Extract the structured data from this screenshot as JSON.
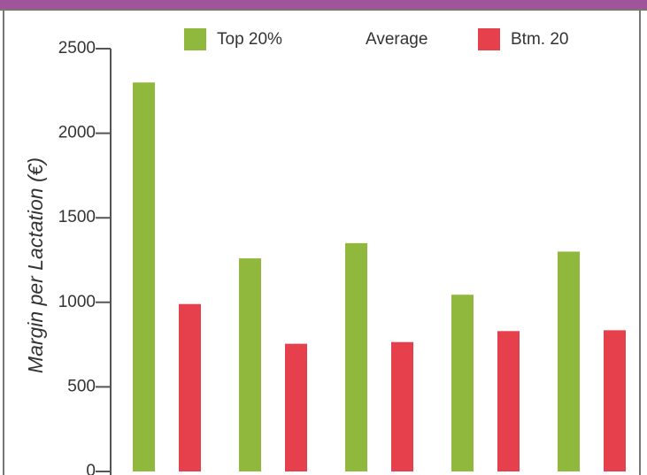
{
  "chart_data": {
    "type": "bar",
    "y_label": "Margin per Lactation (€)",
    "categories": [
      null,
      null,
      null,
      null,
      null
    ],
    "series": [
      {
        "name": "Top 20%",
        "color": "#8fb83c",
        "values": [
          2300,
          1260,
          1350,
          1045,
          1300
        ]
      },
      {
        "name": "Average",
        "color": null,
        "values": [
          null,
          null,
          null,
          null,
          null
        ]
      },
      {
        "name": "Btm. 20",
        "color": "#e5404b",
        "values": [
          990,
          755,
          765,
          830,
          835
        ]
      }
    ],
    "ylim": [
      0,
      2500
    ],
    "yticks": [
      0,
      500,
      1000,
      1500,
      2000,
      2500
    ]
  }
}
